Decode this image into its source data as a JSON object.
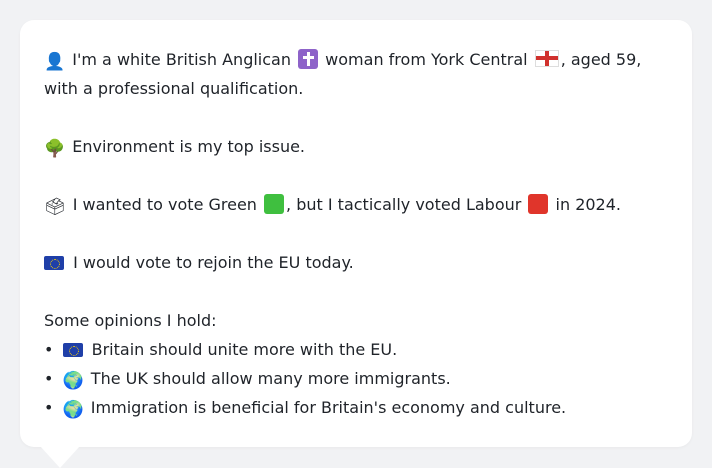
{
  "profile": {
    "line1_a": "I'm a white British Anglican",
    "line1_b": "woman from York Central",
    "line1_c": ", aged 59,",
    "line2": "with a professional qualification.",
    "issue": "Environment is my top issue.",
    "vote_a": "I wanted to vote Green",
    "vote_b": ", but I tactically voted Labour",
    "vote_c": "in 2024.",
    "eu": "I would vote to rejoin the EU today.",
    "opinions_heading": "Some opinions I hold:",
    "opinions": [
      "Britain should unite more with the EU.",
      "The UK should allow many more immigrants.",
      "Immigration is beneficial for Britain's economy and culture."
    ]
  },
  "icons": {
    "person": "person-icon",
    "cross": "latin-cross-icon",
    "england_flag": "england-flag-icon",
    "tree": "tree-icon",
    "ballot": "ballot-box-icon",
    "green_square": "green-square-icon",
    "red_square": "red-square-icon",
    "eu_flag": "eu-flag-icon",
    "globe": "globe-icon"
  },
  "colors": {
    "green": "#3fbf3f",
    "red": "#e0352b"
  }
}
